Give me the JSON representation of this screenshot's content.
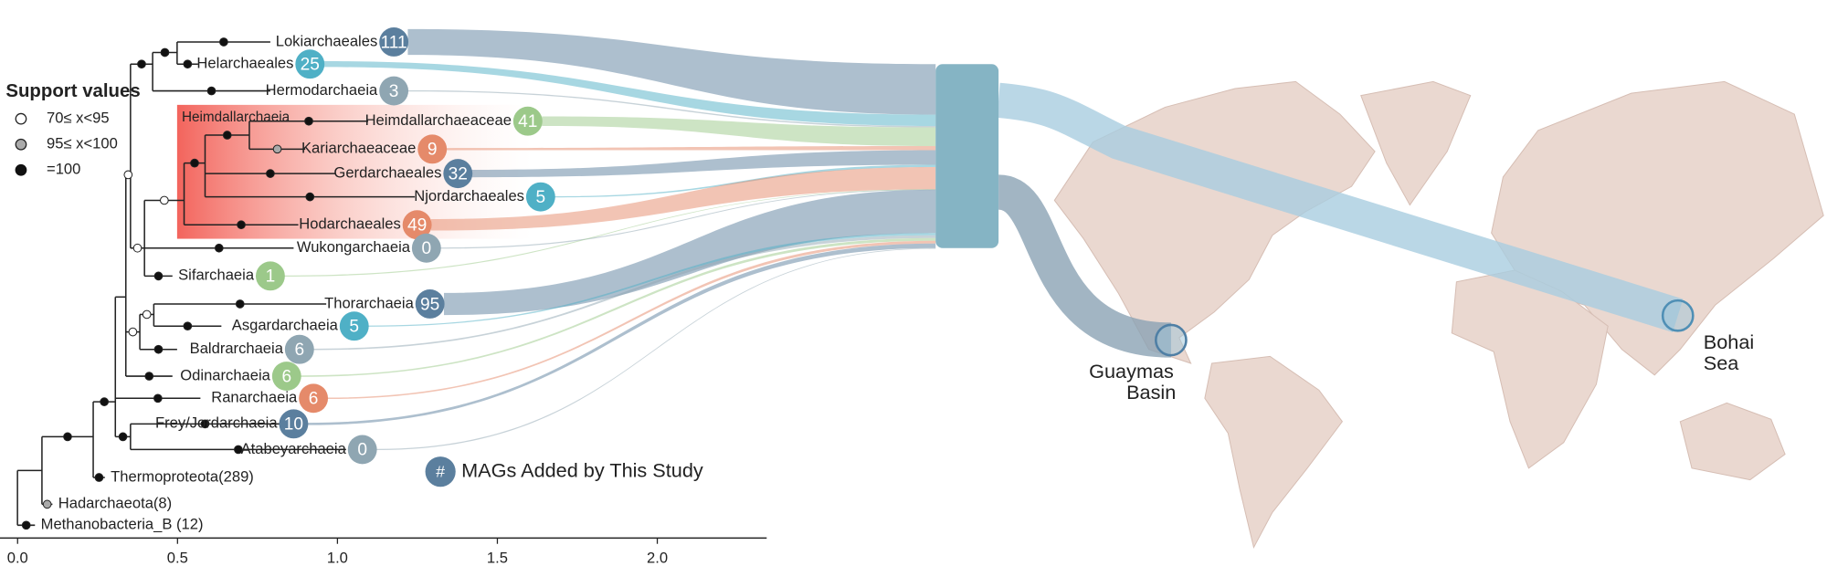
{
  "tree": {
    "axis": {
      "xlim": [
        -0.055,
        2.342
      ],
      "xticks": [
        {
          "value": 0,
          "label": "0.0"
        },
        {
          "value": 0.5,
          "label": "0.5"
        },
        {
          "value": 1,
          "label": "1.0"
        },
        {
          "value": 1.5,
          "label": "1.5"
        },
        {
          "value": 2,
          "label": "2.0"
        }
      ]
    },
    "clade_label": "Heimdallarchaeia",
    "leaves": [
      {
        "name": "Lokiarchaeales",
        "count": 111,
        "color": "#5b7f9e"
      },
      {
        "name": "Helarchaeales",
        "count": 25,
        "color": "#4fb0c6"
      },
      {
        "name": "Hermodarchaeia",
        "count": 3,
        "color": "#8fa6b2"
      },
      {
        "name": "Heimdallarchaeaceae",
        "count": 41,
        "color": "#9cc98a"
      },
      {
        "name": "Kariarchaeaceae",
        "count": 9,
        "color": "#e58a6a"
      },
      {
        "name": "Gerdarchaeales",
        "count": 32,
        "color": "#5b7f9e"
      },
      {
        "name": "Njordarchaeales",
        "count": 5,
        "color": "#4fb0c6"
      },
      {
        "name": "Hodarchaeales",
        "count": 49,
        "color": "#e58a6a"
      },
      {
        "name": "Wukongarchaeia",
        "count": 0,
        "color": "#8fa6b2"
      },
      {
        "name": "Sifarchaeia",
        "count": 1,
        "color": "#9cc98a"
      },
      {
        "name": "Thorarchaeia",
        "count": 95,
        "color": "#5b7f9e"
      },
      {
        "name": "Asgardarchaeia",
        "count": 5,
        "color": "#4fb0c6"
      },
      {
        "name": "Baldrarchaeia",
        "count": 6,
        "color": "#8fa6b2"
      },
      {
        "name": "Odinarchaeia",
        "count": 6,
        "color": "#9cc98a"
      },
      {
        "name": "Ranarchaeia",
        "count": 6,
        "color": "#e58a6a"
      },
      {
        "name": "Frey/Jordarchaeia",
        "count": 10,
        "color": "#5b7f9e"
      },
      {
        "name": "Atabeyarchaeia",
        "count": 0,
        "color": "#8fa6b2"
      }
    ],
    "outgroups": [
      "Thermoproteota(289)",
      "Hadarchaeota(8)",
      "Methanobacteria_B (12)"
    ]
  },
  "legend": {
    "title": "Support values",
    "items": [
      "70≤ x<95",
      "95≤ x<100",
      "=100"
    ],
    "badge_symbol": "#",
    "badge_text": "MAGs Added by This Study"
  },
  "map": {
    "sites": [
      {
        "label_lines": [
          "Guaymas",
          "Basin"
        ]
      },
      {
        "label_lines": [
          "Bohai",
          "Sea"
        ]
      }
    ]
  }
}
